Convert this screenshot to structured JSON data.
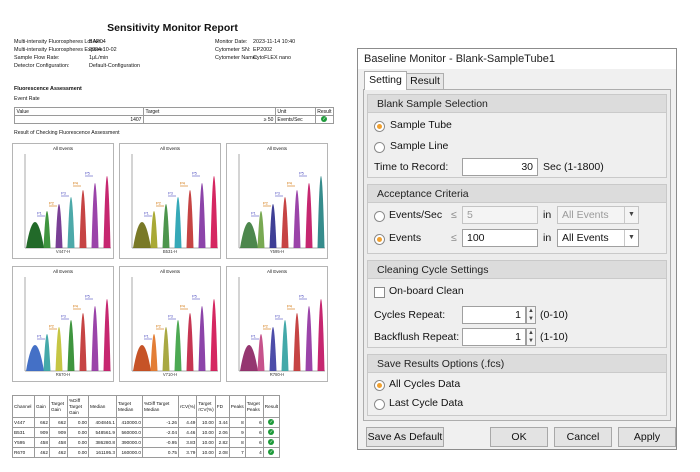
{
  "report": {
    "title": "Sensitivity Monitor Report",
    "info_left": [
      {
        "k": "Multi-intensity Fluorospheres Lot No.:",
        "v": "BAP04"
      },
      {
        "k": "Multi-intensity Fluorospheres Expires:",
        "v": "2024-10-02"
      },
      {
        "k": "Sample Flow Rate:",
        "v": "1μL/min"
      },
      {
        "k": "Detector Configuration:",
        "v": "Default-Configuration"
      }
    ],
    "info_right": [
      {
        "k": "Monitor Date:",
        "v": "2023-11-14 10:40"
      },
      {
        "k": "Cytometer SN:",
        "v": "EP2002"
      },
      {
        "k": "Cytometer Name:",
        "v": "CytoFLEX nano"
      }
    ],
    "fluor_title": "Fluorescence Assessment",
    "event_rate_label": "Event Rate",
    "event_table": {
      "headers": [
        "Value",
        "Target",
        "Unit",
        "Result"
      ],
      "value": "1407",
      "target": "≥ 50",
      "unit": "Events/Sec"
    },
    "check_title": "Result of Checking Fluorescence Assessment",
    "plots": [
      {
        "title": "All Events",
        "axis": "V447-H",
        "colors": [
          "#0a5a12",
          "#2a8a2a",
          "#6a2a8a",
          "#3aa0a0",
          "#c03030",
          "#9030a0",
          "#c01060"
        ]
      },
      {
        "title": "All Events",
        "axis": "B531-H",
        "colors": [
          "#6a6a10",
          "#a0a020",
          "#3a8a3a",
          "#20a0b0",
          "#c03030",
          "#8030a0",
          "#d01050"
        ]
      },
      {
        "title": "All Events",
        "axis": "Y595-H",
        "colors": [
          "#3a7a3a",
          "#6aa040",
          "#2a2a8a",
          "#c03030",
          "#9030a0",
          "#c01060",
          "#208080"
        ]
      },
      {
        "title": "All Events",
        "axis": "R670-H",
        "colors": [
          "#3060c0",
          "#30a0a0",
          "#c0c030",
          "#2a8a2a",
          "#c03030",
          "#9030a0",
          "#c01060"
        ]
      },
      {
        "title": "All Events",
        "axis": "V710-H",
        "colors": [
          "#c04010",
          "#e07020",
          "#a0a030",
          "#3aa040",
          "#c02040",
          "#8030a0",
          "#d01050"
        ]
      },
      {
        "title": "All Events",
        "axis": "R780-H",
        "colors": [
          "#8a2060",
          "#c04080",
          "#3a3aa0",
          "#30a0a0",
          "#c03030",
          "#9030a0",
          "#c01060"
        ]
      }
    ],
    "peak_labels": [
      "P1",
      "P2",
      "P3",
      "P4",
      "P5",
      "P6",
      "P7"
    ],
    "channel_table": {
      "headers": [
        "Channel",
        "Gain",
        "Target Gain",
        "%Diff Target Gain",
        "Median",
        "Target Median",
        "%Diff Target Median",
        "rCV(%)",
        "Target rCV(%)",
        "FD",
        "Peaks",
        "Target Peaks",
        "Result"
      ],
      "rows": [
        [
          "V447",
          "662",
          "662",
          "0.00",
          "404846.1",
          "410000.0",
          "-1.26",
          "4.49",
          "10.00",
          "3.44",
          "8",
          "6"
        ],
        [
          "B531",
          "909",
          "909",
          "0.00",
          "548561.9",
          "560000.0",
          "-2.04",
          "4.46",
          "10.00",
          "2.06",
          "9",
          "6"
        ],
        [
          "Y595",
          "458",
          "458",
          "0.00",
          "386280.8",
          "390000.0",
          "-0.95",
          "3.83",
          "10.00",
          "2.82",
          "8",
          "6"
        ],
        [
          "R670",
          "462",
          "462",
          "0.00",
          "161195.3",
          "160000.0",
          "0.75",
          "3.79",
          "10.00",
          "2.08",
          "7",
          "4"
        ]
      ]
    }
  },
  "dialog": {
    "title": "Baseline Monitor - Blank-SampleTube1",
    "tabs": [
      "Setting",
      "Result"
    ],
    "blank": {
      "header": "Blank Sample Selection",
      "option_tube": "Sample Tube",
      "option_line": "Sample Line",
      "time_label": "Time to Record:",
      "time_value": "30",
      "time_unit": "Sec (1-1800)"
    },
    "acceptance": {
      "header": "Acceptance Criteria",
      "events_sec_label": "Events/Sec",
      "events_label": "Events",
      "op": "≤",
      "events_sec_value": "5",
      "events_value": "100",
      "in_label": "in",
      "scope_disabled": "All Events",
      "scope_enabled": "All Events"
    },
    "cleaning": {
      "header": "Cleaning Cycle Settings",
      "onboard_label": "On-board Clean",
      "cycles_label": "Cycles Repeat:",
      "cycles_value": "1",
      "cycles_range": "(0-10)",
      "backflush_label": "Backflush Repeat:",
      "backflush_value": "1",
      "backflush_range": "(1-10)"
    },
    "save": {
      "header": "Save Results Options (.fcs)",
      "all_cycles": "All Cycles Data",
      "last_cycle": "Last Cycle Data"
    },
    "buttons": {
      "save_default": "Save As Default",
      "ok": "OK",
      "cancel": "Cancel",
      "apply": "Apply"
    }
  }
}
